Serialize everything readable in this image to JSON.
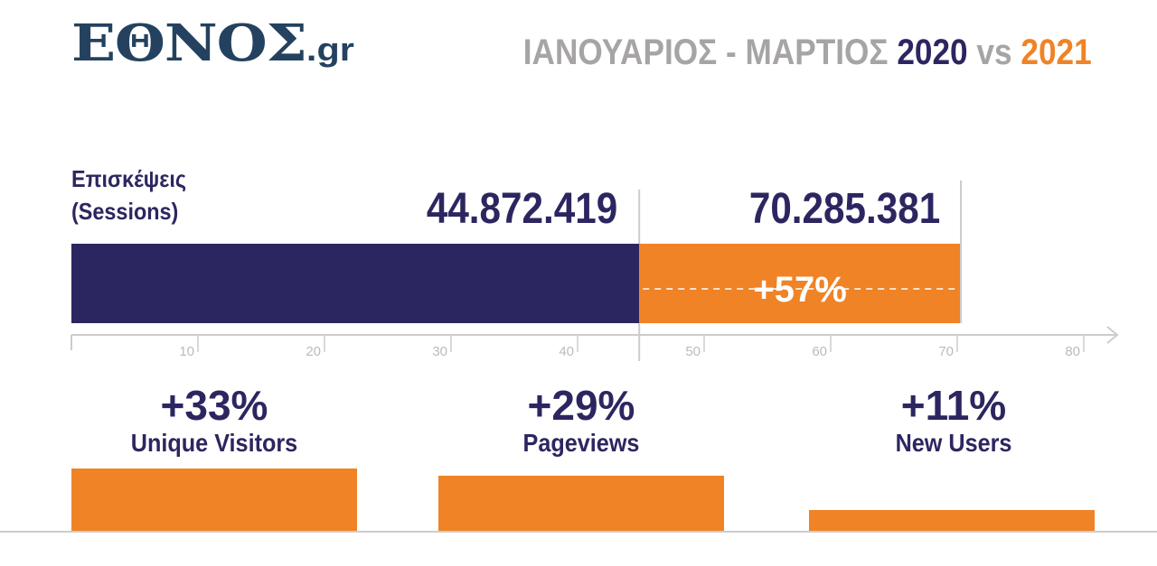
{
  "logo": {
    "main": "ΕΘΝΟΣ",
    "suffix": ".gr"
  },
  "title": {
    "period": "ΙΑΝΟΥΑΡΙΟΣ - ΜΑΡΤΙΟΣ",
    "year_a": "2020",
    "vs": "vs",
    "year_b": "2021"
  },
  "colors": {
    "navy": "#2c2660",
    "orange": "#ef8326",
    "grey": "#a7a4a4"
  },
  "chart_data": [
    {
      "type": "bar",
      "title": "Επισκέψεις (Sessions)",
      "label_line1": "Επισκέψεις",
      "label_line2": "(Sessions)",
      "unit": "millions",
      "xlim": [
        0,
        80
      ],
      "ticks": [
        "10",
        "20",
        "30",
        "40",
        "50",
        "60",
        "70",
        "80"
      ],
      "series": [
        {
          "name": "2020",
          "value": 44.872419,
          "label": "44.872.419"
        },
        {
          "name": "2021",
          "value": 70.285381,
          "label": "70.285.381"
        }
      ],
      "change": "+57%"
    },
    {
      "type": "bar",
      "categories": [
        "Unique Visitors",
        "Pageviews",
        "New Users"
      ],
      "values": [
        33,
        29,
        11
      ],
      "labels": [
        "+33%",
        "+29%",
        "+11%"
      ],
      "unit": "% change"
    }
  ]
}
